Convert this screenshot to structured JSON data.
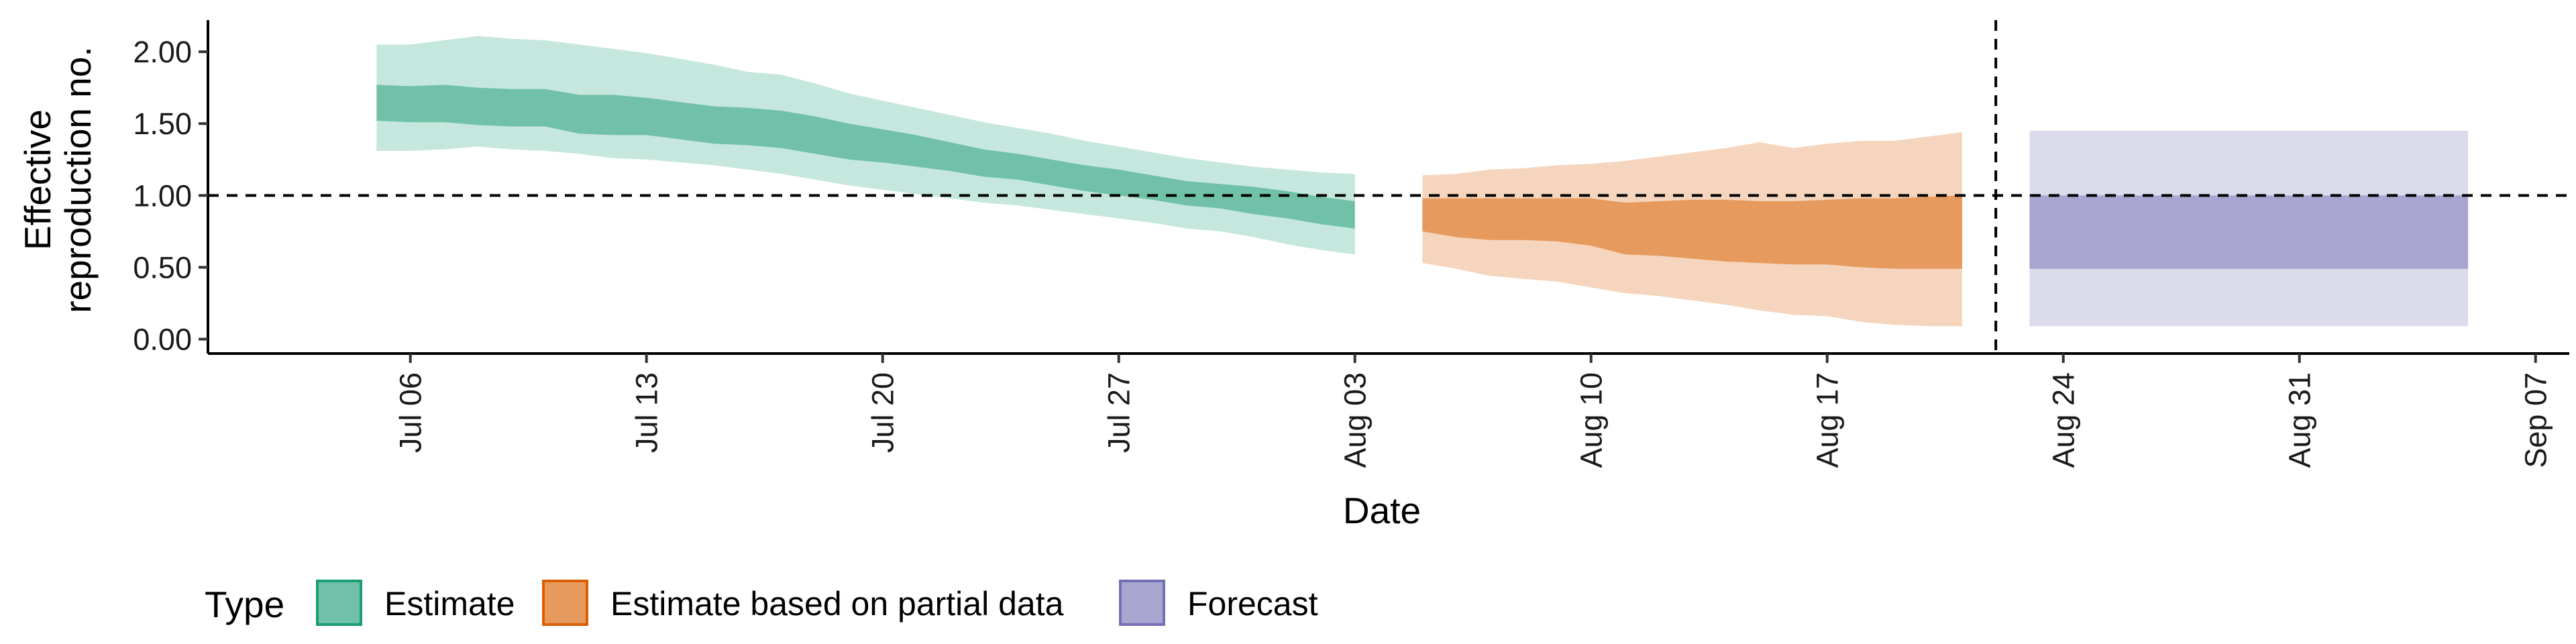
{
  "chart_data": {
    "type": "area",
    "title": "",
    "xlabel": "Date",
    "ylabel": [
      "Effective",
      "reproduction no."
    ],
    "ylim": [
      -0.1,
      2.22
    ],
    "xlim": [
      "2020-07-00",
      "2020-09-08"
    ],
    "y_ticks": [
      0.0,
      0.5,
      1.0,
      1.5,
      2.0
    ],
    "y_tick_labels": [
      "0.00",
      "0.50",
      "1.00",
      "1.50",
      "2.00"
    ],
    "x_ticks": [
      "2020-07-06",
      "2020-07-13",
      "2020-07-20",
      "2020-07-27",
      "2020-08-03",
      "2020-08-10",
      "2020-08-17",
      "2020-08-24",
      "2020-08-31",
      "2020-09-07"
    ],
    "x_tick_labels": [
      "Jul 06",
      "Jul 13",
      "Jul 20",
      "Jul 27",
      "Aug 03",
      "Aug 10",
      "Aug 17",
      "Aug 24",
      "Aug 31",
      "Sep 07"
    ],
    "hline_y": 1.0,
    "vline_x": "2020-08-22",
    "legend": {
      "title": "Type",
      "position": "bottom",
      "items": [
        {
          "label": "Estimate",
          "color": "#70c1a8",
          "border": "#1b9e77"
        },
        {
          "label": "Estimate based on partial data",
          "color": "#e79a5d",
          "border": "#d95f02"
        },
        {
          "label": "Forecast",
          "color": "#a8a5d1",
          "border": "#7570b3"
        }
      ]
    },
    "series": [
      {
        "name": "Estimate",
        "color": "#1b9e77",
        "inner_color": "#70c1a8",
        "outer_color": "#c6e7dd",
        "points": [
          {
            "date": "2020-07-05",
            "lo90": 1.31,
            "lo50": 1.52,
            "hi50": 1.77,
            "hi90": 2.05
          },
          {
            "date": "2020-07-06",
            "lo90": 1.31,
            "lo50": 1.51,
            "hi50": 1.76,
            "hi90": 2.05
          },
          {
            "date": "2020-07-07",
            "lo90": 1.32,
            "lo50": 1.51,
            "hi50": 1.77,
            "hi90": 2.08
          },
          {
            "date": "2020-07-08",
            "lo90": 1.34,
            "lo50": 1.49,
            "hi50": 1.75,
            "hi90": 2.11
          },
          {
            "date": "2020-07-09",
            "lo90": 1.32,
            "lo50": 1.48,
            "hi50": 1.74,
            "hi90": 2.09
          },
          {
            "date": "2020-07-10",
            "lo90": 1.31,
            "lo50": 1.48,
            "hi50": 1.74,
            "hi90": 2.08
          },
          {
            "date": "2020-07-11",
            "lo90": 1.29,
            "lo50": 1.43,
            "hi50": 1.7,
            "hi90": 2.05
          },
          {
            "date": "2020-07-12",
            "lo90": 1.26,
            "lo50": 1.42,
            "hi50": 1.7,
            "hi90": 2.02
          },
          {
            "date": "2020-07-13",
            "lo90": 1.25,
            "lo50": 1.42,
            "hi50": 1.68,
            "hi90": 1.99
          },
          {
            "date": "2020-07-14",
            "lo90": 1.23,
            "lo50": 1.39,
            "hi50": 1.65,
            "hi90": 1.95
          },
          {
            "date": "2020-07-15",
            "lo90": 1.21,
            "lo50": 1.36,
            "hi50": 1.62,
            "hi90": 1.91
          },
          {
            "date": "2020-07-16",
            "lo90": 1.18,
            "lo50": 1.35,
            "hi50": 1.61,
            "hi90": 1.86
          },
          {
            "date": "2020-07-17",
            "lo90": 1.15,
            "lo50": 1.33,
            "hi50": 1.59,
            "hi90": 1.84
          },
          {
            "date": "2020-07-18",
            "lo90": 1.11,
            "lo50": 1.29,
            "hi50": 1.55,
            "hi90": 1.78
          },
          {
            "date": "2020-07-19",
            "lo90": 1.07,
            "lo50": 1.25,
            "hi50": 1.5,
            "hi90": 1.71
          },
          {
            "date": "2020-07-20",
            "lo90": 1.04,
            "lo50": 1.23,
            "hi50": 1.46,
            "hi90": 1.66
          },
          {
            "date": "2020-07-21",
            "lo90": 1.01,
            "lo50": 1.2,
            "hi50": 1.42,
            "hi90": 1.61
          },
          {
            "date": "2020-07-22",
            "lo90": 0.98,
            "lo50": 1.17,
            "hi50": 1.37,
            "hi90": 1.56
          },
          {
            "date": "2020-07-23",
            "lo90": 0.95,
            "lo50": 1.13,
            "hi50": 1.32,
            "hi90": 1.51
          },
          {
            "date": "2020-07-24",
            "lo90": 0.93,
            "lo50": 1.11,
            "hi50": 1.29,
            "hi90": 1.47
          },
          {
            "date": "2020-07-25",
            "lo90": 0.9,
            "lo50": 1.07,
            "hi50": 1.25,
            "hi90": 1.43
          },
          {
            "date": "2020-07-26",
            "lo90": 0.87,
            "lo50": 1.03,
            "hi50": 1.21,
            "hi90": 1.38
          },
          {
            "date": "2020-07-27",
            "lo90": 0.84,
            "lo50": 1.0,
            "hi50": 1.18,
            "hi90": 1.34
          },
          {
            "date": "2020-07-28",
            "lo90": 0.81,
            "lo50": 0.97,
            "hi50": 1.14,
            "hi90": 1.3
          },
          {
            "date": "2020-07-29",
            "lo90": 0.77,
            "lo50": 0.93,
            "hi50": 1.1,
            "hi90": 1.26
          },
          {
            "date": "2020-07-30",
            "lo90": 0.75,
            "lo50": 0.91,
            "hi50": 1.08,
            "hi90": 1.23
          },
          {
            "date": "2020-07-31",
            "lo90": 0.71,
            "lo50": 0.87,
            "hi50": 1.06,
            "hi90": 1.2
          },
          {
            "date": "2020-08-01",
            "lo90": 0.66,
            "lo50": 0.84,
            "hi50": 1.03,
            "hi90": 1.18
          },
          {
            "date": "2020-08-02",
            "lo90": 0.62,
            "lo50": 0.8,
            "hi50": 0.99,
            "hi90": 1.16
          },
          {
            "date": "2020-08-03",
            "lo90": 0.59,
            "lo50": 0.77,
            "hi50": 0.96,
            "hi90": 1.15
          }
        ]
      },
      {
        "name": "Estimate based on partial data",
        "color": "#d95f02",
        "inner_color": "#e79a5d",
        "outer_color": "#f5d5bd",
        "points": [
          {
            "date": "2020-08-05",
            "lo90": 0.53,
            "lo50": 0.75,
            "hi50": 0.98,
            "hi90": 1.14
          },
          {
            "date": "2020-08-06",
            "lo90": 0.49,
            "lo50": 0.71,
            "hi50": 0.98,
            "hi90": 1.15
          },
          {
            "date": "2020-08-07",
            "lo90": 0.44,
            "lo50": 0.69,
            "hi50": 0.98,
            "hi90": 1.18
          },
          {
            "date": "2020-08-08",
            "lo90": 0.42,
            "lo50": 0.69,
            "hi50": 0.98,
            "hi90": 1.19
          },
          {
            "date": "2020-08-09",
            "lo90": 0.4,
            "lo50": 0.68,
            "hi50": 0.98,
            "hi90": 1.21
          },
          {
            "date": "2020-08-10",
            "lo90": 0.36,
            "lo50": 0.65,
            "hi50": 0.98,
            "hi90": 1.22
          },
          {
            "date": "2020-08-11",
            "lo90": 0.32,
            "lo50": 0.59,
            "hi50": 0.95,
            "hi90": 1.24
          },
          {
            "date": "2020-08-12",
            "lo90": 0.3,
            "lo50": 0.58,
            "hi50": 0.96,
            "hi90": 1.27
          },
          {
            "date": "2020-08-13",
            "lo90": 0.27,
            "lo50": 0.56,
            "hi50": 0.97,
            "hi90": 1.3
          },
          {
            "date": "2020-08-14",
            "lo90": 0.24,
            "lo50": 0.54,
            "hi50": 0.97,
            "hi90": 1.33
          },
          {
            "date": "2020-08-15",
            "lo90": 0.2,
            "lo50": 0.53,
            "hi50": 0.96,
            "hi90": 1.37
          },
          {
            "date": "2020-08-16",
            "lo90": 0.17,
            "lo50": 0.52,
            "hi50": 0.96,
            "hi90": 1.33
          },
          {
            "date": "2020-08-17",
            "lo90": 0.16,
            "lo50": 0.52,
            "hi50": 0.97,
            "hi90": 1.36
          },
          {
            "date": "2020-08-18",
            "lo90": 0.12,
            "lo50": 0.5,
            "hi50": 0.98,
            "hi90": 1.38
          },
          {
            "date": "2020-08-19",
            "lo90": 0.1,
            "lo50": 0.49,
            "hi50": 0.98,
            "hi90": 1.38
          },
          {
            "date": "2020-08-20",
            "lo90": 0.09,
            "lo50": 0.49,
            "hi50": 0.99,
            "hi90": 1.41
          },
          {
            "date": "2020-08-21",
            "lo90": 0.09,
            "lo50": 0.49,
            "hi50": 1.0,
            "hi90": 1.44
          }
        ]
      },
      {
        "name": "Forecast",
        "color": "#7570b3",
        "inner_color": "#a8a5d1",
        "outer_color": "#dcdbec",
        "points": [
          {
            "date": "2020-08-23",
            "lo90": 0.09,
            "lo50": 0.49,
            "hi50": 1.0,
            "hi90": 1.45
          },
          {
            "date": "2020-09-05",
            "lo90": 0.09,
            "lo50": 0.49,
            "hi50": 1.0,
            "hi90": 1.45
          }
        ]
      }
    ]
  }
}
